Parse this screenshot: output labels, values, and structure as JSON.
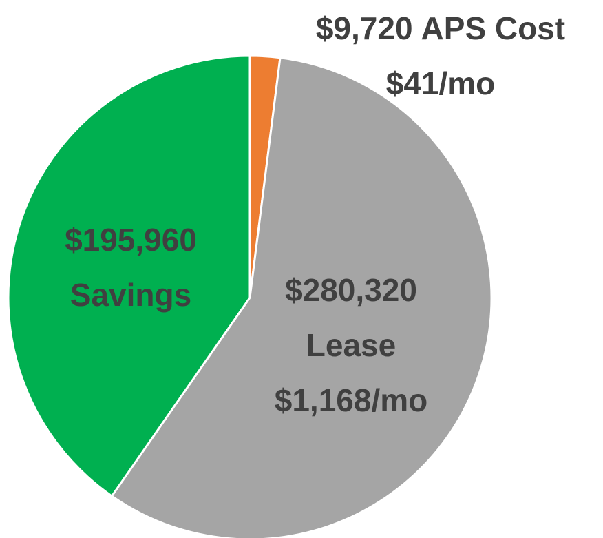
{
  "chart_data": {
    "type": "pie",
    "categories": [
      "APS Cost",
      "Lease",
      "Savings"
    ],
    "values": [
      9720,
      280320,
      195960
    ],
    "value_labels": [
      "$9,720",
      "$280,320",
      "$195,960"
    ],
    "monthly_labels": [
      "$41/mo",
      "$1,168/mo",
      null
    ],
    "colors": [
      "#ED7D31",
      "#A5A5A5",
      "#00B050"
    ]
  }
}
